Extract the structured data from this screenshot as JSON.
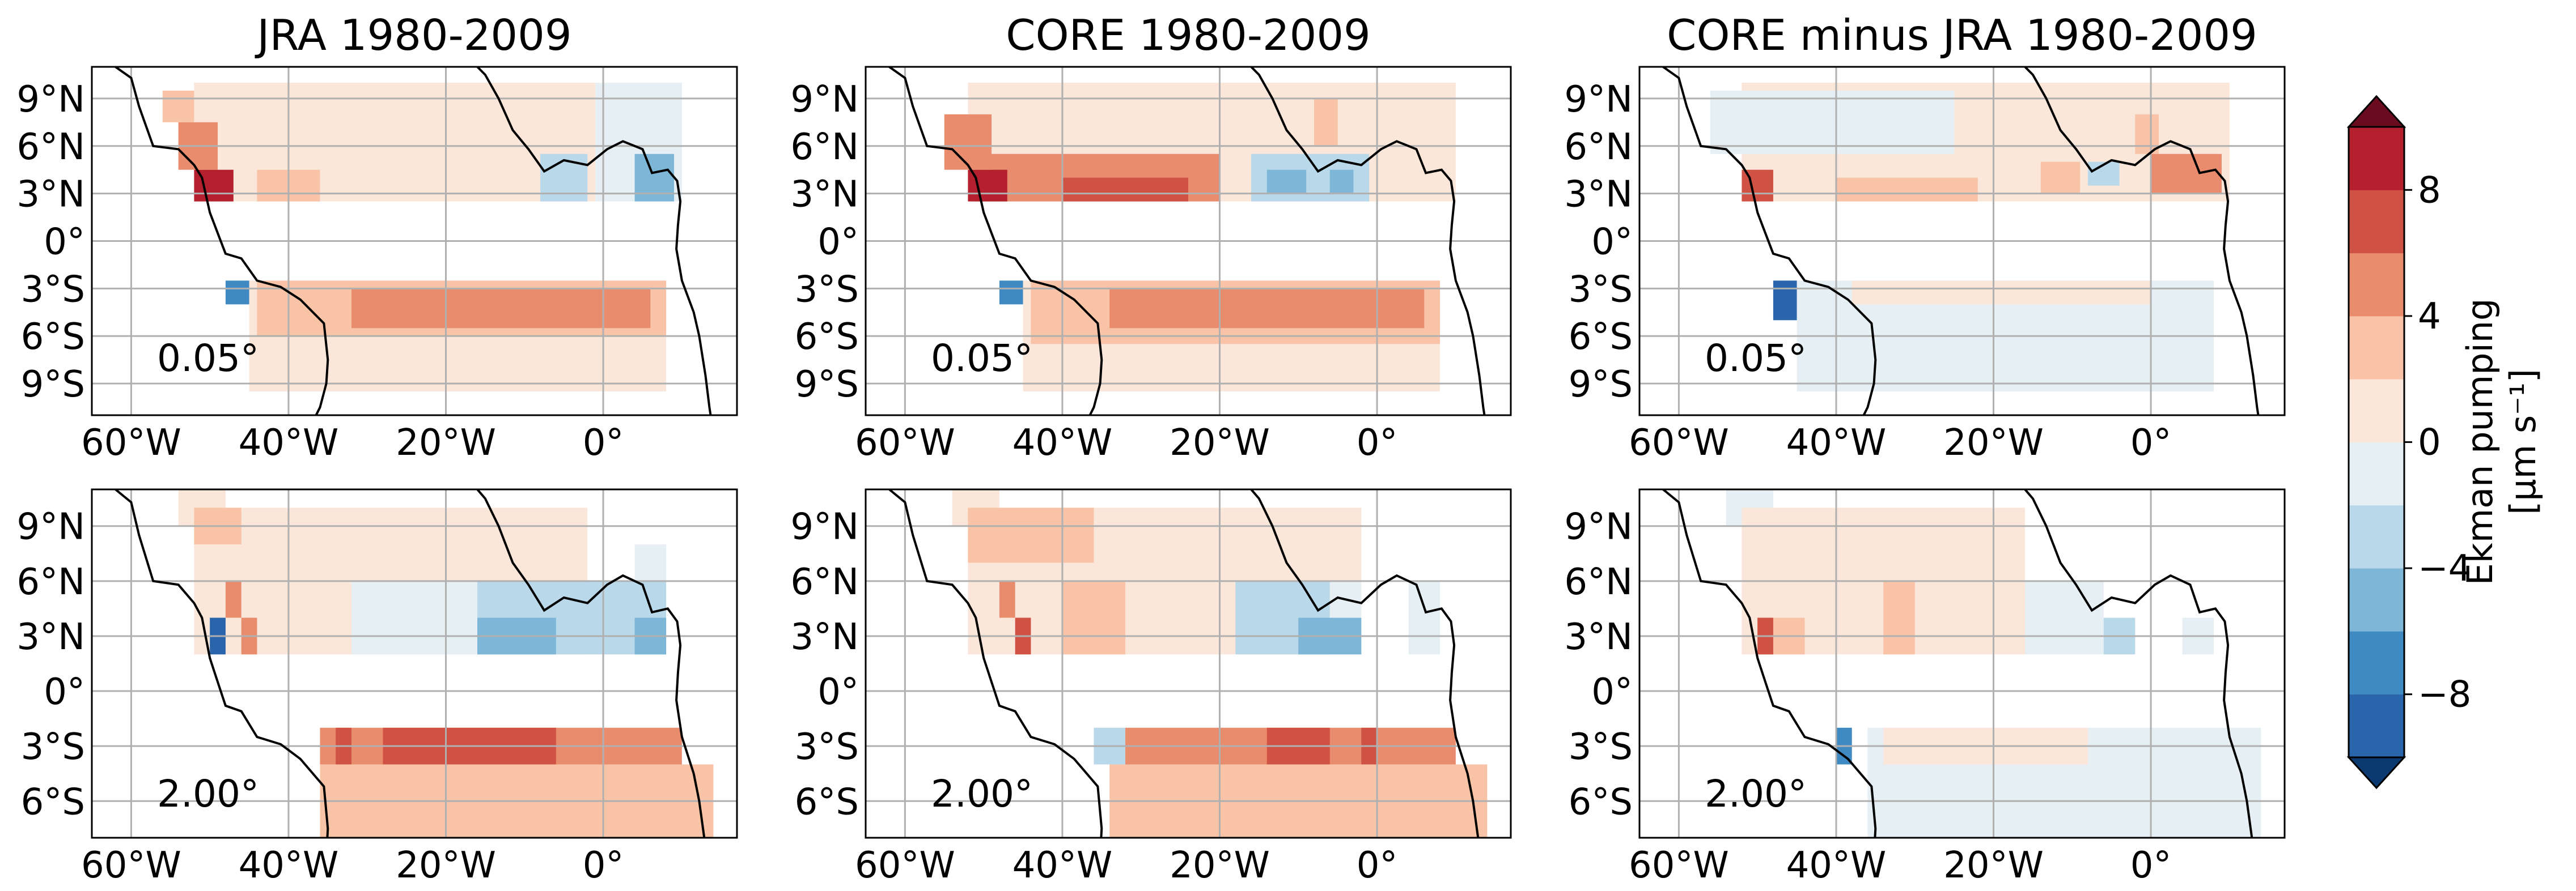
{
  "figure": {
    "colorbar": {
      "label_line1": "Ekman pumping",
      "label_line2": "[μm s⁻¹]",
      "ticks": [
        "8",
        "4",
        "0",
        "−4",
        "−8"
      ],
      "tick_values": [
        8,
        4,
        0,
        -4,
        -8
      ],
      "range": [
        -10,
        10
      ],
      "levels": [
        -10,
        -8,
        -6,
        -4,
        -2,
        0,
        2,
        4,
        6,
        8,
        10
      ],
      "colors": [
        "#2a65ab",
        "#3f8ac2",
        "#7db6d7",
        "#b9d8ea",
        "#e6eff4",
        "#fbe6da",
        "#f8c3a6",
        "#e98c6e",
        "#cf5245",
        "#b4202e"
      ],
      "extend_min_color": "#0b3a70",
      "extend_max_color": "#6a0b20"
    },
    "xticks": [
      "60°W",
      "40°W",
      "20°W",
      "0°"
    ],
    "yticks_top": [
      "9°N",
      "6°N",
      "3°N",
      "0°",
      "3°S",
      "6°S",
      "9°S"
    ],
    "yticks_bottom": [
      "9°N",
      "6°N",
      "3°N",
      "0°",
      "3°S",
      "6°S"
    ]
  },
  "chart_data": [
    {
      "type": "heatmap",
      "title": "JRA 1980-2009",
      "resolution_label": "0.05°",
      "xlim": [
        -65,
        17
      ],
      "ylim": [
        -11,
        11
      ],
      "cells": [
        {
          "lon": [
            -52,
            -1
          ],
          "lat": [
            2.5,
            10
          ],
          "v": 1
        },
        {
          "lon": [
            -1,
            10
          ],
          "lat": [
            2.5,
            10
          ],
          "v": -1
        },
        {
          "lon": [
            -52,
            -47
          ],
          "lat": [
            2.5,
            4.5
          ],
          "v": 8
        },
        {
          "lon": [
            -54,
            -49
          ],
          "lat": [
            4.5,
            7.5
          ],
          "v": 5
        },
        {
          "lon": [
            -56,
            -52
          ],
          "lat": [
            7.5,
            9.5
          ],
          "v": 3
        },
        {
          "lon": [
            -44,
            -36
          ],
          "lat": [
            2.5,
            4.5
          ],
          "v": 3
        },
        {
          "lon": [
            -8,
            -2
          ],
          "lat": [
            2.5,
            5.5
          ],
          "v": -3
        },
        {
          "lon": [
            4,
            9
          ],
          "lat": [
            2.5,
            5.5
          ],
          "v": -5
        },
        {
          "lon": [
            -45,
            8
          ],
          "lat": [
            -9.5,
            -2.5
          ],
          "v": 1
        },
        {
          "lon": [
            -44,
            8
          ],
          "lat": [
            -6,
            -2.5
          ],
          "v": 3
        },
        {
          "lon": [
            -32,
            6
          ],
          "lat": [
            -5.5,
            -3
          ],
          "v": 5
        },
        {
          "lon": [
            -48,
            -45
          ],
          "lat": [
            -4,
            -2.5
          ],
          "v": -7
        }
      ]
    },
    {
      "type": "heatmap",
      "title": "CORE 1980-2009",
      "resolution_label": "0.05°",
      "xlim": [
        -65,
        17
      ],
      "ylim": [
        -11,
        11
      ],
      "cells": [
        {
          "lon": [
            -52,
            10
          ],
          "lat": [
            2.5,
            10
          ],
          "v": 1
        },
        {
          "lon": [
            -51,
            -20
          ],
          "lat": [
            2.5,
            5.5
          ],
          "v": 5
        },
        {
          "lon": [
            -52,
            -47
          ],
          "lat": [
            2.5,
            4.5
          ],
          "v": 8
        },
        {
          "lon": [
            -55,
            -49
          ],
          "lat": [
            4.5,
            8
          ],
          "v": 5
        },
        {
          "lon": [
            -40,
            -24
          ],
          "lat": [
            2.5,
            4
          ],
          "v": 7
        },
        {
          "lon": [
            -16,
            -1
          ],
          "lat": [
            2.5,
            5.5
          ],
          "v": -3
        },
        {
          "lon": [
            -14,
            -9
          ],
          "lat": [
            3,
            4.5
          ],
          "v": -5
        },
        {
          "lon": [
            -6,
            -3
          ],
          "lat": [
            3,
            4.5
          ],
          "v": -5
        },
        {
          "lon": [
            -8,
            -5
          ],
          "lat": [
            6,
            9
          ],
          "v": 3
        },
        {
          "lon": [
            -45,
            8
          ],
          "lat": [
            -9.5,
            -2.5
          ],
          "v": 1
        },
        {
          "lon": [
            -44,
            8
          ],
          "lat": [
            -6.5,
            -2.5
          ],
          "v": 3
        },
        {
          "lon": [
            -34,
            6
          ],
          "lat": [
            -5.5,
            -3
          ],
          "v": 5
        },
        {
          "lon": [
            -48,
            -45
          ],
          "lat": [
            -4,
            -2.5
          ],
          "v": -7
        }
      ]
    },
    {
      "type": "heatmap",
      "title": "CORE minus JRA 1980-2009",
      "resolution_label": "0.05°",
      "xlim": [
        -65,
        17
      ],
      "ylim": [
        -11,
        11
      ],
      "cells": [
        {
          "lon": [
            -52,
            10
          ],
          "lat": [
            2.5,
            10
          ],
          "v": 1
        },
        {
          "lon": [
            -56,
            -25
          ],
          "lat": [
            5.5,
            9.5
          ],
          "v": -1
        },
        {
          "lon": [
            -40,
            -22
          ],
          "lat": [
            2.5,
            4
          ],
          "v": 3
        },
        {
          "lon": [
            -52,
            -48
          ],
          "lat": [
            2.5,
            4.5
          ],
          "v": 7
        },
        {
          "lon": [
            -14,
            -9
          ],
          "lat": [
            3,
            5
          ],
          "v": 3
        },
        {
          "lon": [
            -8,
            -4
          ],
          "lat": [
            3.5,
            5
          ],
          "v": -3
        },
        {
          "lon": [
            0,
            9
          ],
          "lat": [
            3,
            5.5
          ],
          "v": 5
        },
        {
          "lon": [
            -2,
            1
          ],
          "lat": [
            5.5,
            8
          ],
          "v": 3
        },
        {
          "lon": [
            -45,
            8
          ],
          "lat": [
            -9.5,
            -2.5
          ],
          "v": -1
        },
        {
          "lon": [
            -38,
            0
          ],
          "lat": [
            -4,
            -2.5
          ],
          "v": 1
        },
        {
          "lon": [
            -48,
            -45
          ],
          "lat": [
            -5,
            -2.5
          ],
          "v": -9
        }
      ]
    },
    {
      "type": "heatmap",
      "title": "",
      "resolution_label": "2.00°",
      "xlim": [
        -65,
        17
      ],
      "ylim": [
        -8,
        11
      ],
      "cells": [
        {
          "lon": [
            -54,
            -48
          ],
          "lat": [
            9,
            11
          ],
          "v": 1
        },
        {
          "lon": [
            -52,
            -2
          ],
          "lat": [
            2,
            10
          ],
          "v": 1
        },
        {
          "lon": [
            -52,
            -46
          ],
          "lat": [
            8,
            10
          ],
          "v": 3
        },
        {
          "lon": [
            -48,
            -46
          ],
          "lat": [
            4,
            6
          ],
          "v": 5
        },
        {
          "lon": [
            -46,
            -44
          ],
          "lat": [
            2,
            4
          ],
          "v": 5
        },
        {
          "lon": [
            -50,
            -48
          ],
          "lat": [
            2,
            4
          ],
          "v": -9
        },
        {
          "lon": [
            -32,
            -16
          ],
          "lat": [
            2,
            6
          ],
          "v": -1
        },
        {
          "lon": [
            -16,
            8
          ],
          "lat": [
            2,
            6
          ],
          "v": -3
        },
        {
          "lon": [
            -16,
            -6
          ],
          "lat": [
            2,
            4
          ],
          "v": -5
        },
        {
          "lon": [
            4,
            8
          ],
          "lat": [
            2,
            4
          ],
          "v": -5
        },
        {
          "lon": [
            4,
            8
          ],
          "lat": [
            6,
            8
          ],
          "v": -1
        },
        {
          "lon": [
            -36,
            14
          ],
          "lat": [
            -8,
            -4
          ],
          "v": 3
        },
        {
          "lon": [
            -36,
            10
          ],
          "lat": [
            -4,
            -2
          ],
          "v": 5
        },
        {
          "lon": [
            -34,
            -32
          ],
          "lat": [
            -4,
            -2
          ],
          "v": 7
        },
        {
          "lon": [
            -28,
            -6
          ],
          "lat": [
            -4,
            -2
          ],
          "v": 7
        }
      ]
    },
    {
      "type": "heatmap",
      "title": "",
      "resolution_label": "2.00°",
      "xlim": [
        -65,
        17
      ],
      "ylim": [
        -8,
        11
      ],
      "cells": [
        {
          "lon": [
            -54,
            -48
          ],
          "lat": [
            9,
            11
          ],
          "v": 1
        },
        {
          "lon": [
            -52,
            -2
          ],
          "lat": [
            2,
            10
          ],
          "v": 1
        },
        {
          "lon": [
            -52,
            -36
          ],
          "lat": [
            7,
            10
          ],
          "v": 3
        },
        {
          "lon": [
            -40,
            -32
          ],
          "lat": [
            2,
            6
          ],
          "v": 3
        },
        {
          "lon": [
            -46,
            -44
          ],
          "lat": [
            2,
            4
          ],
          "v": 7
        },
        {
          "lon": [
            -48,
            -46
          ],
          "lat": [
            4,
            6
          ],
          "v": 5
        },
        {
          "lon": [
            -18,
            -6
          ],
          "lat": [
            2,
            6
          ],
          "v": -3
        },
        {
          "lon": [
            -10,
            -2
          ],
          "lat": [
            2,
            4
          ],
          "v": -5
        },
        {
          "lon": [
            -6,
            -2
          ],
          "lat": [
            4,
            6
          ],
          "v": -1
        },
        {
          "lon": [
            4,
            8
          ],
          "lat": [
            2,
            6
          ],
          "v": -1
        },
        {
          "lon": [
            -34,
            14
          ],
          "lat": [
            -8,
            -4
          ],
          "v": 3
        },
        {
          "lon": [
            -32,
            10
          ],
          "lat": [
            -4,
            -2
          ],
          "v": 5
        },
        {
          "lon": [
            -36,
            -32
          ],
          "lat": [
            -4,
            -2
          ],
          "v": -3
        },
        {
          "lon": [
            -14,
            -6
          ],
          "lat": [
            -4,
            -2
          ],
          "v": 7
        },
        {
          "lon": [
            -2,
            0
          ],
          "lat": [
            -4,
            -2
          ],
          "v": 7
        }
      ]
    },
    {
      "type": "heatmap",
      "title": "",
      "resolution_label": "2.00°",
      "xlim": [
        -65,
        17
      ],
      "ylim": [
        -8,
        11
      ],
      "cells": [
        {
          "lon": [
            -54,
            -48
          ],
          "lat": [
            9,
            11
          ],
          "v": -1
        },
        {
          "lon": [
            -52,
            -16
          ],
          "lat": [
            2,
            10
          ],
          "v": 1
        },
        {
          "lon": [
            -50,
            -44
          ],
          "lat": [
            2,
            4
          ],
          "v": 3
        },
        {
          "lon": [
            -50,
            -48
          ],
          "lat": [
            2,
            4
          ],
          "v": 7
        },
        {
          "lon": [
            -34,
            -30
          ],
          "lat": [
            2,
            6
          ],
          "v": 3
        },
        {
          "lon": [
            -16,
            -6
          ],
          "lat": [
            2,
            6
          ],
          "v": -1
        },
        {
          "lon": [
            -6,
            -2
          ],
          "lat": [
            2,
            4
          ],
          "v": -3
        },
        {
          "lon": [
            4,
            8
          ],
          "lat": [
            2,
            4
          ],
          "v": -1
        },
        {
          "lon": [
            -36,
            14
          ],
          "lat": [
            -8,
            -2
          ],
          "v": -1
        },
        {
          "lon": [
            -34,
            -8
          ],
          "lat": [
            -4,
            -2
          ],
          "v": 1
        },
        {
          "lon": [
            -40,
            -38
          ],
          "lat": [
            -4,
            -2
          ],
          "v": -7
        }
      ]
    }
  ]
}
